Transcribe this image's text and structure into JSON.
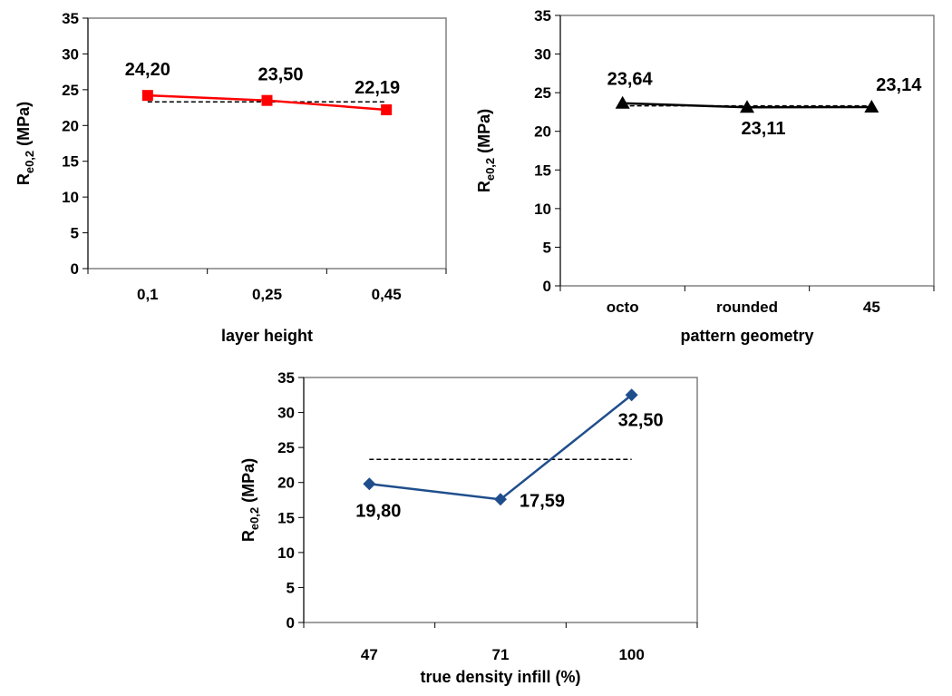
{
  "chart_data": [
    {
      "type": "line",
      "categories": [
        "0,1",
        "0,25",
        "0,45"
      ],
      "series": [
        {
          "values": [
            24.2,
            23.5,
            22.19
          ],
          "color": "#ff0000",
          "marker": "square"
        }
      ],
      "reference_line": {
        "value": 23.3,
        "style": "dashed",
        "color": "#000000"
      },
      "data_labels": [
        "24,20",
        "23,50",
        "22,19"
      ],
      "xlabel": "layer height",
      "ylabel": {
        "main": "R",
        "sub": "e0,2",
        "unit": " (MPa)"
      },
      "ylim": [
        0,
        35
      ],
      "yticks": [
        "0",
        "5",
        "10",
        "15",
        "20",
        "25",
        "30",
        "35"
      ],
      "grid": false
    },
    {
      "type": "line",
      "categories": [
        "octo",
        "rounded",
        "45"
      ],
      "series": [
        {
          "values": [
            23.64,
            23.11,
            23.14
          ],
          "color": "#000000",
          "marker": "triangle"
        }
      ],
      "reference_line": {
        "value": 23.3,
        "style": "dashed",
        "color": "#000000"
      },
      "data_labels": [
        "23,64",
        "23,11",
        "23,14"
      ],
      "xlabel": "pattern geometry",
      "ylabel": {
        "main": "R",
        "sub": "e0,2",
        "unit": " (MPa)"
      },
      "ylim": [
        0,
        35
      ],
      "yticks": [
        "0",
        "5",
        "10",
        "15",
        "20",
        "25",
        "30",
        "35"
      ],
      "grid": false
    },
    {
      "type": "line",
      "categories": [
        "47",
        "71",
        "100"
      ],
      "series": [
        {
          "values": [
            19.8,
            17.59,
            32.5
          ],
          "color": "#1f4e8c",
          "marker": "diamond"
        }
      ],
      "reference_line": {
        "value": 23.3,
        "style": "dashed",
        "color": "#000000"
      },
      "data_labels": [
        "19,80",
        "17,59",
        "32,50"
      ],
      "xlabel": "true density infill (%)",
      "ylabel": {
        "main": "R",
        "sub": "e0,2",
        "unit": " (MPa)"
      },
      "ylim": [
        0,
        35
      ],
      "yticks": [
        "0",
        "5",
        "10",
        "15",
        "20",
        "25",
        "30",
        "35"
      ],
      "grid": false
    }
  ]
}
